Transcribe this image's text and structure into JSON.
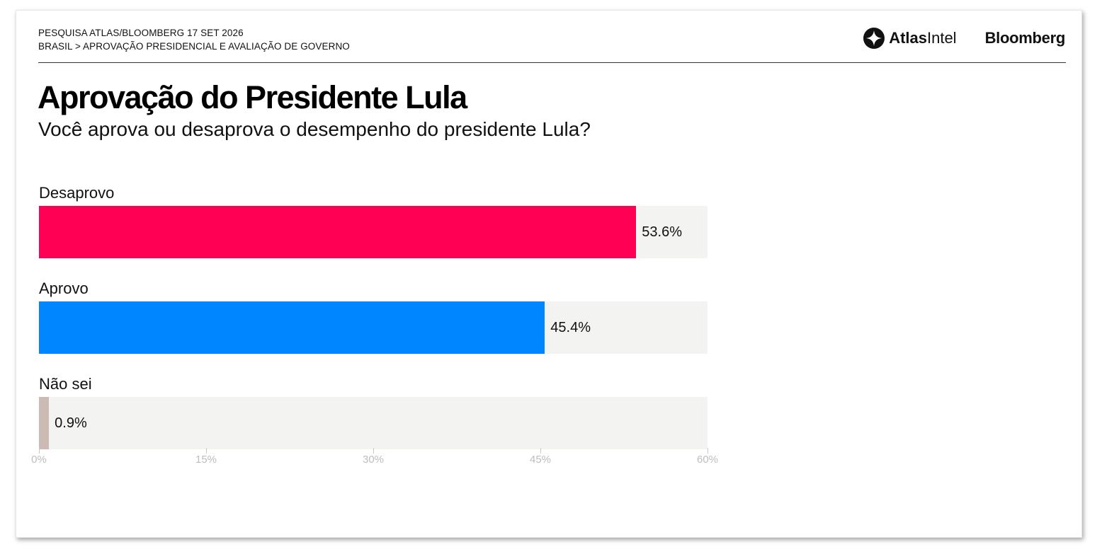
{
  "header": {
    "line1": "PESQUISA ATLAS/BLOOMBERG 17 SET 2026",
    "line2": "BRASIL > APROVAÇÃO PRESIDENCIAL E AVALIAÇÃO DE GOVERNO",
    "logo_atlas_bold": "Atlas",
    "logo_atlas_regular": "Intel",
    "logo_bloomberg": "Bloomberg"
  },
  "colors": {
    "desaprovo": "#ff0055",
    "aprovo": "#0086ff",
    "nao_sei": "#cdbab4",
    "track": "#f3f3f2"
  },
  "chart_data": {
    "type": "bar",
    "orientation": "horizontal",
    "title": "Aprovação do Presidente Lula",
    "subtitle": "Você aprova ou desaprova o desempenho do presidente Lula?",
    "categories": [
      "Desaprovo",
      "Aprovo",
      "Não sei"
    ],
    "values": [
      53.6,
      45.4,
      0.9
    ],
    "value_labels": [
      "53.6%",
      "45.4%",
      "0.9%"
    ],
    "xlim": [
      0,
      60
    ],
    "x_ticks": [
      0,
      15,
      30,
      45,
      60
    ],
    "x_tick_labels": [
      "0%",
      "15%",
      "30%",
      "45%",
      "60%"
    ],
    "grid": false,
    "legend": "none"
  }
}
